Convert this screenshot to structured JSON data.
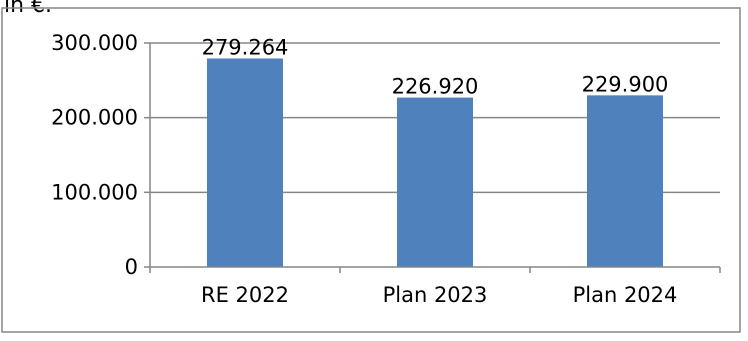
{
  "header": {
    "unit_fragment": "in €."
  },
  "chart_data": {
    "type": "bar",
    "categories": [
      "RE 2022",
      "Plan 2023",
      "Plan 2024"
    ],
    "values": [
      279264,
      226920,
      229900
    ],
    "value_labels": [
      "279.264",
      "226.920",
      "229.900"
    ],
    "y_ticks": [
      0,
      100000,
      200000,
      300000
    ],
    "y_tick_labels": [
      "0",
      "100.000",
      "200.000",
      "300.000"
    ],
    "ylim": [
      0,
      300000
    ],
    "grid": true,
    "legend": "none",
    "title": "",
    "xlabel": "",
    "ylabel": "",
    "bar_color": "#4F81BD",
    "axis_color": "#868686"
  }
}
